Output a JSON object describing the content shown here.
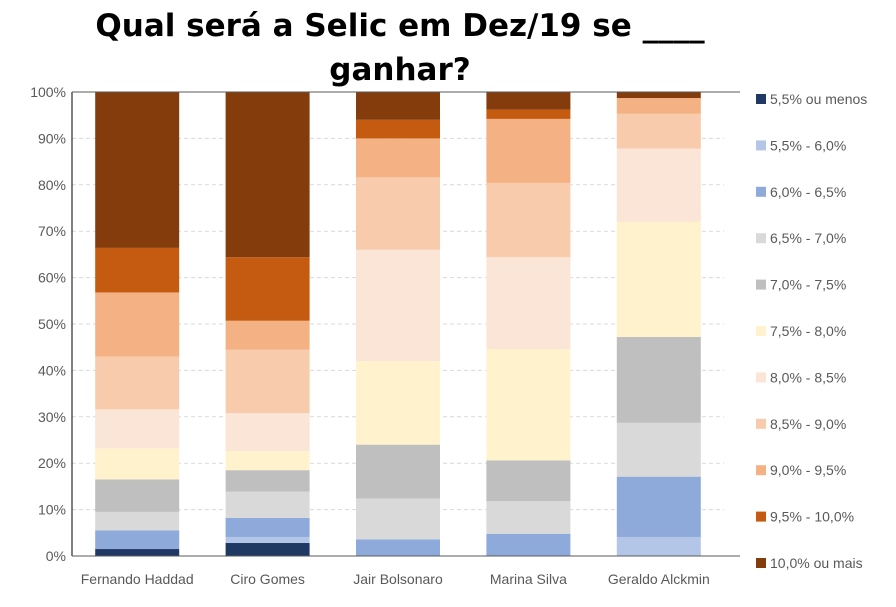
{
  "chart_data": {
    "type": "bar",
    "stacked": "percent",
    "title": "Qual será a Selic em Dez/19 se ____ ganhar?",
    "xlabel": "",
    "ylabel": "",
    "ylim": [
      0,
      100
    ],
    "yticks": [
      "0%",
      "10%",
      "20%",
      "30%",
      "40%",
      "50%",
      "60%",
      "70%",
      "80%",
      "90%",
      "100%"
    ],
    "grid": true,
    "legend_position": "right",
    "categories": [
      "Fernando Haddad",
      "Ciro Gomes",
      "Jair Bolsonaro",
      "Marina Silva",
      "Geraldo Alckmin"
    ],
    "series": [
      {
        "name": "5,5% ou menos",
        "color": "#1f3864",
        "values": [
          1.5,
          2.8,
          0,
          0,
          0
        ]
      },
      {
        "name": "5,5% - 6,0%",
        "color": "#b4c6e7",
        "values": [
          0,
          1.3,
          0,
          0,
          4.1
        ]
      },
      {
        "name": "6,0% - 6,5%",
        "color": "#8eaadb",
        "values": [
          4.0,
          4.1,
          3.6,
          4.8,
          13.0
        ]
      },
      {
        "name": "6,5% - 7,0%",
        "color": "#d9d9d9",
        "values": [
          4.0,
          5.7,
          8.8,
          7.0,
          11.6
        ]
      },
      {
        "name": "7,0% - 7,5%",
        "color": "#bfbfbf",
        "values": [
          7.0,
          4.6,
          11.6,
          8.8,
          18.5
        ]
      },
      {
        "name": "7,5% - 8,0%",
        "color": "#fff2cc",
        "values": [
          6.7,
          4.1,
          18.0,
          24.0,
          24.8
        ]
      },
      {
        "name": "8,0% - 8,5%",
        "color": "#fbe5d6",
        "values": [
          8.4,
          8.2,
          24.0,
          19.8,
          15.8
        ]
      },
      {
        "name": "8,5% - 9,0%",
        "color": "#f8cbad",
        "values": [
          11.4,
          13.7,
          15.6,
          16.0,
          7.5
        ]
      },
      {
        "name": "9,0% - 9,5%",
        "color": "#f4b183",
        "values": [
          13.8,
          6.2,
          8.4,
          13.8,
          3.4
        ]
      },
      {
        "name": "9,5% - 10,0%",
        "color": "#c55a11",
        "values": [
          9.6,
          13.7,
          4.0,
          2.0,
          0
        ]
      },
      {
        "name": "10,0% ou mais",
        "color": "#843c0c",
        "values": [
          33.6,
          35.6,
          6.0,
          3.8,
          1.3
        ]
      }
    ]
  }
}
